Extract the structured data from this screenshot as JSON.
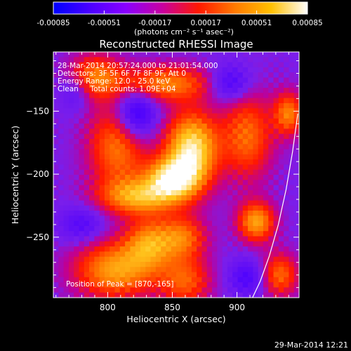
{
  "chart_data": {
    "type": "heatmap",
    "title": "Reconstructed RHESSI Image",
    "xlabel": "Heliocentric X (arcsec)",
    "ylabel": "Heliocentric Y (arcsec)",
    "xlim": [
      758,
      948
    ],
    "ylim": [
      -298,
      -103
    ],
    "xticks": [
      800,
      850,
      900
    ],
    "yticks": [
      -250,
      -200,
      -150
    ],
    "colorbar": {
      "range": [
        -0.00085,
        0.00085
      ],
      "ticks": [
        "-0.00085",
        "-0.00051",
        "-0.00017",
        "0.00017",
        "0.00051",
        "0.00085"
      ],
      "tick_values": [
        -0.00085,
        -0.00051,
        -0.00017,
        0.00017,
        0.00051,
        0.00085
      ],
      "unit_label": "(photons cm⁻² s⁻¹ asec⁻²)",
      "colors": [
        "#0000ff",
        "#4a00ff",
        "#8a00ff",
        "#c800a0",
        "#ff1800",
        "#ff7a00",
        "#ffc000",
        "#ffffff"
      ]
    },
    "annotations": {
      "time_range": "28-Mar-2014 20:57:24.000 to 21:01:54.000",
      "detectors": "Detectors: 3F 5F 6F 7F 8F 9F, Att 0",
      "energy_range": "Energy Range: 12.0 - 25.0 keV",
      "clean": "Clean     Total counts: 1.09E+04",
      "peak": "Position of Peak = [870,-165]"
    },
    "limb": [
      [
        912,
        -298
      ],
      [
        918,
        -285
      ],
      [
        925,
        -265
      ],
      [
        932,
        -240
      ],
      [
        938,
        -212
      ],
      [
        943,
        -182
      ],
      [
        947,
        -152
      ]
    ],
    "background_color": "#8a3ad8",
    "features": [
      {
        "x": 865,
        "y": -180,
        "sx": 14,
        "sy": 20,
        "amp": 1.0
      },
      {
        "x": 850,
        "y": -203,
        "sx": 14,
        "sy": 11,
        "amp": 0.9
      },
      {
        "x": 826,
        "y": -218,
        "sx": 22,
        "sy": 10,
        "amp": 0.72
      },
      {
        "x": 808,
        "y": -178,
        "sx": 16,
        "sy": 24,
        "amp": 0.6
      },
      {
        "x": 843,
        "y": -128,
        "sx": 26,
        "sy": 10,
        "amp": 0.62
      },
      {
        "x": 790,
        "y": -122,
        "sx": 14,
        "sy": 12,
        "amp": 0.55
      },
      {
        "x": 832,
        "y": -255,
        "sx": 13,
        "sy": 14,
        "amp": 0.6
      },
      {
        "x": 858,
        "y": -250,
        "sx": 13,
        "sy": 12,
        "amp": 0.55
      },
      {
        "x": 806,
        "y": -276,
        "sx": 22,
        "sy": 16,
        "amp": 0.72
      },
      {
        "x": 860,
        "y": -285,
        "sx": 14,
        "sy": 14,
        "amp": 0.5
      },
      {
        "x": 908,
        "y": -170,
        "sx": 14,
        "sy": 24,
        "amp": 0.55
      },
      {
        "x": 940,
        "y": -152,
        "sx": 8,
        "sy": 12,
        "amp": 0.6
      },
      {
        "x": 915,
        "y": -238,
        "sx": 10,
        "sy": 11,
        "amp": 0.72
      },
      {
        "x": 933,
        "y": -280,
        "sx": 10,
        "sy": 12,
        "amp": 0.55
      },
      {
        "x": 822,
        "y": -152,
        "sx": 11,
        "sy": 15,
        "amp": -0.6
      },
      {
        "x": 895,
        "y": -128,
        "sx": 11,
        "sy": 10,
        "amp": -0.42
      },
      {
        "x": 780,
        "y": -240,
        "sx": 12,
        "sy": 10,
        "amp": -0.3
      },
      {
        "x": 908,
        "y": -282,
        "sx": 10,
        "sy": 10,
        "amp": -0.35
      },
      {
        "x": 775,
        "y": -135,
        "sx": 8,
        "sy": 10,
        "amp": -0.25
      }
    ]
  },
  "footer": {
    "timestamp": "29-Mar-2014 12:21"
  }
}
